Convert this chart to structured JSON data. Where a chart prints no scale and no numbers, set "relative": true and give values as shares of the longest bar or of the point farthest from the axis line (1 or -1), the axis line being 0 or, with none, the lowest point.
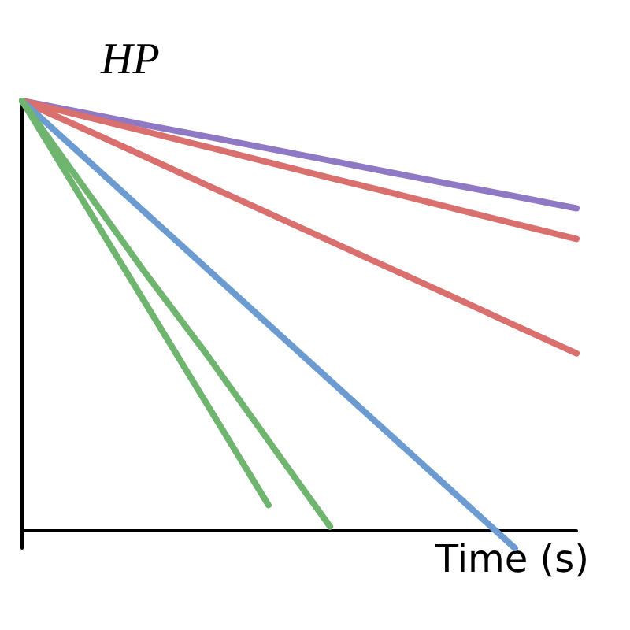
{
  "chart_data": {
    "type": "line",
    "relative": true,
    "xlabel": "Time (s)",
    "ylabel": "HP",
    "categories": [
      null,
      null,
      null,
      null,
      null,
      null,
      null,
      null,
      null,
      null
    ],
    "marker": "none",
    "line_style": "solid",
    "series": [
      {
        "color": "#9079c4",
        "values": [
          1,
          0.972,
          0.944,
          0.917,
          0.889,
          0.861,
          0.833,
          0.805,
          0.778,
          0.75
        ]
      },
      {
        "color": "#d9706e",
        "values": [
          1,
          0.964,
          0.929,
          0.893,
          0.857,
          0.821,
          0.786,
          0.75,
          0.714,
          0.679
        ]
      },
      {
        "color": "#d9706e",
        "values": [
          1,
          0.935,
          0.87,
          0.804,
          0.739,
          0.674,
          0.609,
          0.544,
          0.478,
          0.413
        ]
      },
      {
        "color": "#6b9bd1",
        "values": [
          1,
          0.87,
          0.74,
          0.61,
          0.48,
          0.35,
          0.22,
          0.09,
          -0.04,
          null
        ]
      },
      {
        "color": "#6fb46f",
        "values": [
          1,
          0.8,
          0.6,
          0.41,
          0.21,
          0.01,
          null,
          null,
          null,
          null
        ]
      },
      {
        "color": "#6fb46f",
        "values": [
          1,
          0.765,
          0.53,
          0.295,
          0.06,
          null,
          null,
          null,
          null,
          null
        ]
      }
    ]
  }
}
